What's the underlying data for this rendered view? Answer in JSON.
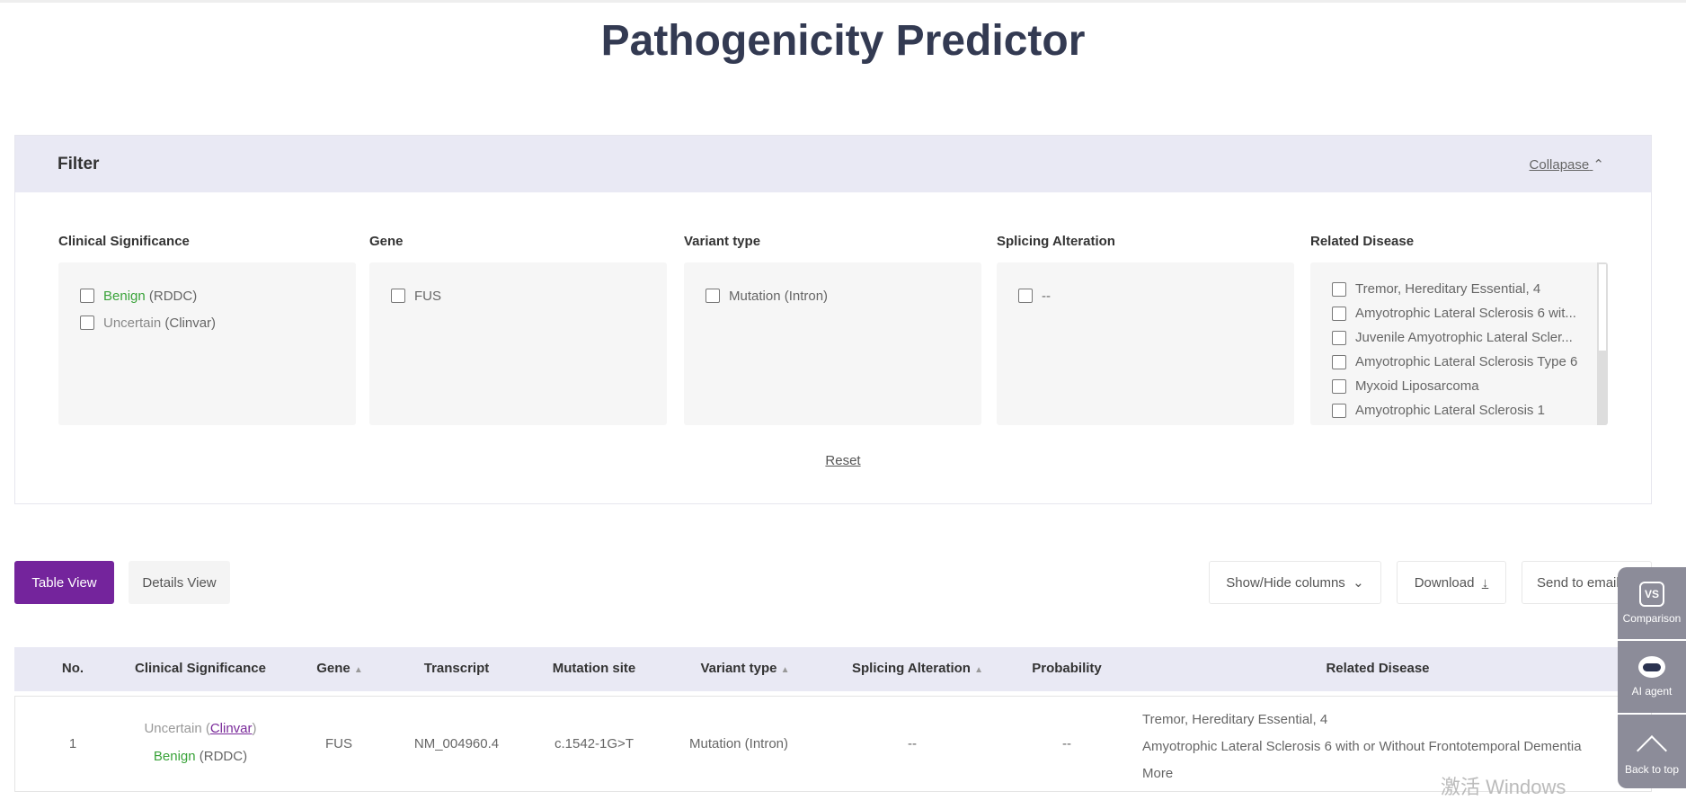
{
  "title": "Pathogenicity Predictor",
  "filter": {
    "title": "Filter",
    "collapse_label": "Collapase",
    "reset_label": "Reset",
    "columns": [
      {
        "label": "Clinical Significance",
        "options": [
          {
            "main": "Benign",
            "suffix": " (RDDC)",
            "color": "#3aa33a"
          },
          {
            "main": "Uncertain",
            "suffix": " (Clinvar)",
            "color": "#888888"
          }
        ]
      },
      {
        "label": "Gene",
        "options": [
          {
            "main": "FUS",
            "suffix": ""
          }
        ]
      },
      {
        "label": "Variant type",
        "options": [
          {
            "main": "Mutation (Intron)",
            "suffix": ""
          }
        ]
      },
      {
        "label": "Splicing Alteration",
        "options": [
          {
            "main": "--",
            "suffix": ""
          }
        ]
      },
      {
        "label": "Related Disease",
        "options": [
          {
            "main": "Tremor, Hereditary Essential, 4"
          },
          {
            "main": "Amyotrophic Lateral Sclerosis 6 wit..."
          },
          {
            "main": "Juvenile Amyotrophic Lateral Scler..."
          },
          {
            "main": "Amyotrophic Lateral Sclerosis Type 6"
          },
          {
            "main": "Myxoid Liposarcoma"
          },
          {
            "main": "Amyotrophic Lateral Sclerosis 1"
          }
        ]
      }
    ]
  },
  "views": {
    "table": "Table View",
    "details": "Details View",
    "active": "table",
    "accent": "#74249c"
  },
  "actions": {
    "show_hide": "Show/Hide columns",
    "download": "Download",
    "send": "Send to email"
  },
  "table": {
    "headers": [
      "No.",
      "Clinical Significance",
      "Gene",
      "Transcript",
      "Mutation site",
      "Variant type",
      "Splicing Alteration",
      "Probability",
      "Related Disease"
    ],
    "rows": [
      {
        "no": "1",
        "sig1": "Uncertain",
        "sig1_src": "Clinvar",
        "sig2": "Benign",
        "sig2_src": " (RDDC)",
        "gene": "FUS",
        "transcript": "NM_004960.4",
        "site": "c.1542-1G>T",
        "variant": "Mutation (Intron)",
        "splicing": "--",
        "probability": "--",
        "diseases": [
          "Tremor, Hereditary Essential, 4",
          "Amyotrophic Lateral Sclerosis 6 with or Without Frontotemporal Dementia"
        ],
        "more": "More"
      }
    ]
  },
  "side": {
    "comparison": "Comparison",
    "vs": "VS",
    "ai": "AI agent",
    "top": "Back to top"
  },
  "watermark": "激活 Windows"
}
